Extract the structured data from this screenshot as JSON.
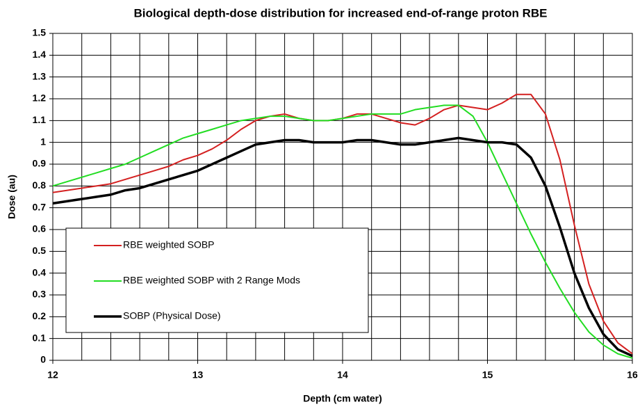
{
  "chart_data": {
    "type": "line",
    "title": "Biological depth-dose distribution for increased end-of-range proton RBE",
    "xlabel": "Depth (cm water)",
    "ylabel": "Dose (au)",
    "x": [
      12,
      12.1,
      12.2,
      12.3,
      12.4,
      12.5,
      12.6,
      12.7,
      12.8,
      12.9,
      13,
      13.1,
      13.2,
      13.3,
      13.4,
      13.5,
      13.6,
      13.7,
      13.8,
      13.9,
      14,
      14.1,
      14.2,
      14.3,
      14.4,
      14.5,
      14.6,
      14.7,
      14.8,
      14.9,
      15,
      15.1,
      15.2,
      15.3,
      15.4,
      15.5,
      15.6,
      15.7,
      15.8,
      15.9,
      16
    ],
    "series": [
      {
        "name": "RBE weighted SOBP",
        "color": "#d42020",
        "width": 2,
        "values": [
          0.77,
          0.78,
          0.79,
          0.8,
          0.81,
          0.83,
          0.85,
          0.87,
          0.89,
          0.92,
          0.94,
          0.97,
          1.01,
          1.06,
          1.1,
          1.12,
          1.13,
          1.11,
          1.1,
          1.1,
          1.11,
          1.13,
          1.13,
          1.11,
          1.09,
          1.08,
          1.11,
          1.15,
          1.17,
          1.16,
          1.15,
          1.18,
          1.22,
          1.22,
          1.13,
          0.92,
          0.62,
          0.35,
          0.18,
          0.08,
          0.03
        ]
      },
      {
        "name": "RBE weighted SOBP with 2 Range Mods",
        "color": "#22dd22",
        "width": 2,
        "values": [
          0.8,
          0.82,
          0.84,
          0.86,
          0.88,
          0.9,
          0.93,
          0.96,
          0.99,
          1.02,
          1.04,
          1.06,
          1.08,
          1.1,
          1.11,
          1.12,
          1.12,
          1.11,
          1.1,
          1.1,
          1.11,
          1.12,
          1.13,
          1.13,
          1.13,
          1.15,
          1.16,
          1.17,
          1.17,
          1.12,
          1.0,
          0.86,
          0.72,
          0.58,
          0.45,
          0.33,
          0.22,
          0.13,
          0.07,
          0.03,
          0.01
        ]
      },
      {
        "name": "SOBP (Physical Dose)",
        "color": "#000000",
        "width": 3.5,
        "values": [
          0.72,
          0.73,
          0.74,
          0.75,
          0.76,
          0.78,
          0.79,
          0.81,
          0.83,
          0.85,
          0.87,
          0.9,
          0.93,
          0.96,
          0.99,
          1.0,
          1.01,
          1.01,
          1.0,
          1.0,
          1.0,
          1.01,
          1.01,
          1.0,
          0.99,
          0.99,
          1.0,
          1.01,
          1.02,
          1.01,
          1.0,
          1.0,
          0.99,
          0.93,
          0.8,
          0.61,
          0.4,
          0.24,
          0.12,
          0.05,
          0.02
        ]
      }
    ],
    "xlim": [
      12,
      16
    ],
    "xticks": [
      12,
      13,
      14,
      15,
      16
    ],
    "xgrid": [
      12.2,
      12.4,
      12.6,
      12.8,
      13,
      13.2,
      13.4,
      13.6,
      13.8,
      14,
      14.2,
      14.4,
      14.6,
      14.8,
      15,
      15.2,
      15.4,
      15.6,
      15.8,
      16
    ],
    "ylim": [
      0,
      1.5
    ],
    "yticks": [
      0,
      0.1,
      0.2,
      0.3,
      0.4,
      0.5,
      0.6,
      0.7,
      0.8,
      0.9,
      1,
      1.1,
      1.2,
      1.3,
      1.4,
      1.5
    ],
    "grid": true,
    "legend": "lower left"
  }
}
